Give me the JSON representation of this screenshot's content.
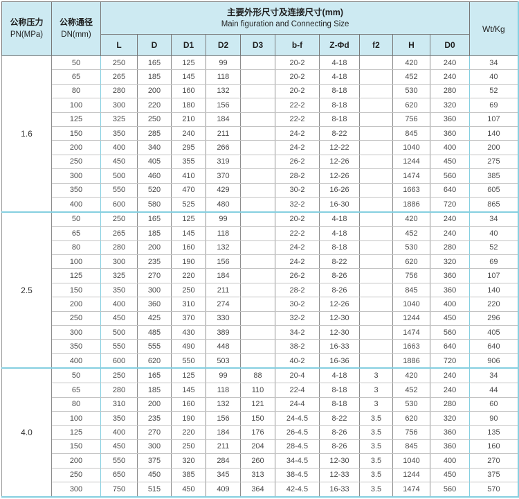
{
  "header": {
    "pressure": {
      "zh": "公称压力",
      "en": "PN(MPa)"
    },
    "diameter": {
      "zh": "公称通径",
      "en": "DN(mm)"
    },
    "main": {
      "zh": "主要外形尺寸及连接尺寸(mm)",
      "en": "Main figuration and Connecting Size"
    },
    "weight": "Wt/Kg",
    "sub_columns": [
      "L",
      "D",
      "D1",
      "D2",
      "D3",
      "b-f",
      "Z-Φd",
      "f2",
      "H",
      "D0"
    ]
  },
  "groups": [
    {
      "pn": "1.6",
      "rows": [
        [
          "50",
          "250",
          "165",
          "125",
          "99",
          "",
          "20-2",
          "4-18",
          "",
          "420",
          "240",
          "34"
        ],
        [
          "65",
          "265",
          "185",
          "145",
          "118",
          "",
          "20-2",
          "4-18",
          "",
          "452",
          "240",
          "40"
        ],
        [
          "80",
          "280",
          "200",
          "160",
          "132",
          "",
          "20-2",
          "8-18",
          "",
          "530",
          "280",
          "52"
        ],
        [
          "100",
          "300",
          "220",
          "180",
          "156",
          "",
          "22-2",
          "8-18",
          "",
          "620",
          "320",
          "69"
        ],
        [
          "125",
          "325",
          "250",
          "210",
          "184",
          "",
          "22-2",
          "8-18",
          "",
          "756",
          "360",
          "107"
        ],
        [
          "150",
          "350",
          "285",
          "240",
          "211",
          "",
          "24-2",
          "8-22",
          "",
          "845",
          "360",
          "140"
        ],
        [
          "200",
          "400",
          "340",
          "295",
          "266",
          "",
          "24-2",
          "12-22",
          "",
          "1040",
          "400",
          "200"
        ],
        [
          "250",
          "450",
          "405",
          "355",
          "319",
          "",
          "26-2",
          "12-26",
          "",
          "1244",
          "450",
          "275"
        ],
        [
          "300",
          "500",
          "460",
          "410",
          "370",
          "",
          "28-2",
          "12-26",
          "",
          "1474",
          "560",
          "385"
        ],
        [
          "350",
          "550",
          "520",
          "470",
          "429",
          "",
          "30-2",
          "16-26",
          "",
          "1663",
          "640",
          "605"
        ],
        [
          "400",
          "600",
          "580",
          "525",
          "480",
          "",
          "32-2",
          "16-30",
          "",
          "1886",
          "720",
          "865"
        ]
      ]
    },
    {
      "pn": "2.5",
      "rows": [
        [
          "50",
          "250",
          "165",
          "125",
          "99",
          "",
          "20-2",
          "4-18",
          "",
          "420",
          "240",
          "34"
        ],
        [
          "65",
          "265",
          "185",
          "145",
          "118",
          "",
          "22-2",
          "4-18",
          "",
          "452",
          "240",
          "40"
        ],
        [
          "80",
          "280",
          "200",
          "160",
          "132",
          "",
          "24-2",
          "8-18",
          "",
          "530",
          "280",
          "52"
        ],
        [
          "100",
          "300",
          "235",
          "190",
          "156",
          "",
          "24-2",
          "8-22",
          "",
          "620",
          "320",
          "69"
        ],
        [
          "125",
          "325",
          "270",
          "220",
          "184",
          "",
          "26-2",
          "8-26",
          "",
          "756",
          "360",
          "107"
        ],
        [
          "150",
          "350",
          "300",
          "250",
          "211",
          "",
          "28-2",
          "8-26",
          "",
          "845",
          "360",
          "140"
        ],
        [
          "200",
          "400",
          "360",
          "310",
          "274",
          "",
          "30-2",
          "12-26",
          "",
          "1040",
          "400",
          "220"
        ],
        [
          "250",
          "450",
          "425",
          "370",
          "330",
          "",
          "32-2",
          "12-30",
          "",
          "1244",
          "450",
          "296"
        ],
        [
          "300",
          "500",
          "485",
          "430",
          "389",
          "",
          "34-2",
          "12-30",
          "",
          "1474",
          "560",
          "405"
        ],
        [
          "350",
          "550",
          "555",
          "490",
          "448",
          "",
          "38-2",
          "16-33",
          "",
          "1663",
          "640",
          "640"
        ],
        [
          "400",
          "600",
          "620",
          "550",
          "503",
          "",
          "40-2",
          "16-36",
          "",
          "1886",
          "720",
          "906"
        ]
      ]
    },
    {
      "pn": "4.0",
      "rows": [
        [
          "50",
          "250",
          "165",
          "125",
          "99",
          "88",
          "20-4",
          "4-18",
          "3",
          "420",
          "240",
          "34"
        ],
        [
          "65",
          "280",
          "185",
          "145",
          "118",
          "110",
          "22-4",
          "8-18",
          "3",
          "452",
          "240",
          "44"
        ],
        [
          "80",
          "310",
          "200",
          "160",
          "132",
          "121",
          "24-4",
          "8-18",
          "3",
          "530",
          "280",
          "60"
        ],
        [
          "100",
          "350",
          "235",
          "190",
          "156",
          "150",
          "24-4.5",
          "8-22",
          "3.5",
          "620",
          "320",
          "90"
        ],
        [
          "125",
          "400",
          "270",
          "220",
          "184",
          "176",
          "26-4.5",
          "8-26",
          "3.5",
          "756",
          "360",
          "135"
        ],
        [
          "150",
          "450",
          "300",
          "250",
          "211",
          "204",
          "28-4.5",
          "8-26",
          "3.5",
          "845",
          "360",
          "160"
        ],
        [
          "200",
          "550",
          "375",
          "320",
          "284",
          "260",
          "34-4.5",
          "12-30",
          "3.5",
          "1040",
          "400",
          "270"
        ],
        [
          "250",
          "650",
          "450",
          "385",
          "345",
          "313",
          "38-4.5",
          "12-33",
          "3.5",
          "1244",
          "450",
          "375"
        ],
        [
          "300",
          "750",
          "515",
          "450",
          "409",
          "364",
          "42-4.5",
          "16-33",
          "3.5",
          "1474",
          "560",
          "570"
        ]
      ]
    }
  ],
  "colors": {
    "header_bg": "#cdeaf2",
    "accent_line": "#85cfe0",
    "grid_dark": "#8c8c8c",
    "grid_light": "#c3c3c3",
    "text": "#4a4a4a"
  }
}
